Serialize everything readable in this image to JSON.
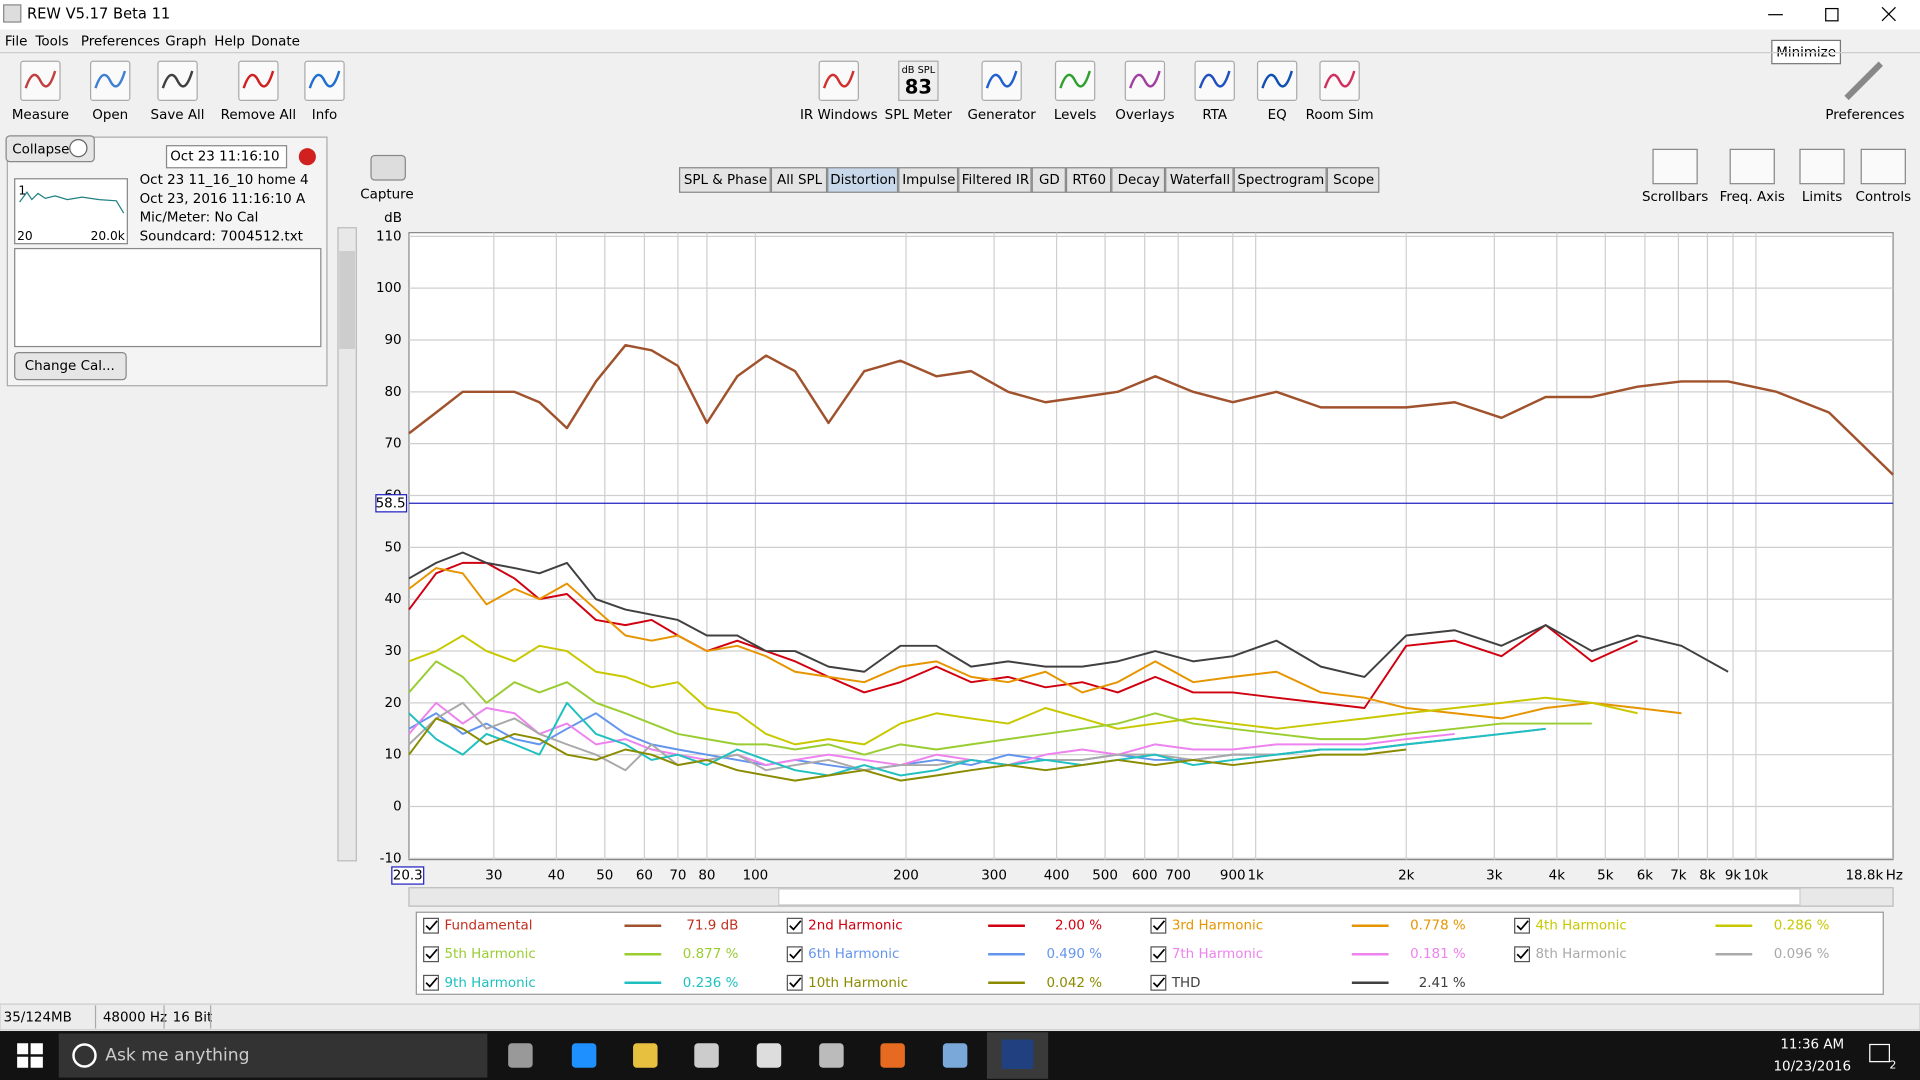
{
  "window": {
    "title": "REW V5.17 Beta 11",
    "tooltip": "Minimize"
  },
  "menu": [
    "File",
    "Tools",
    "Preferences",
    "Graph",
    "Help",
    "Donate"
  ],
  "toolbar_left": [
    "Measure",
    "Open",
    "Save All",
    "Remove All",
    "Info"
  ],
  "toolbar_center": [
    "IR Windows",
    "SPL Meter",
    "Generator",
    "Levels",
    "Overlays",
    "RTA",
    "EQ",
    "Room Sim"
  ],
  "spl_meter": {
    "unit": "dB SPL",
    "value": "83"
  },
  "toolbar_right": [
    "Preferences"
  ],
  "panel": {
    "collapse": "Collapse",
    "date_field": "Oct 23 11:16:10",
    "thumb_index": "1",
    "thumb_left": "20",
    "thumb_right": "20.0k",
    "lines": [
      "Oct 23 11_16_10 home 4",
      "Oct 23, 2016 11:16:10 A",
      "Mic/Meter: No Cal",
      "Soundcard: 7004512.txt"
    ],
    "change_cal": "Change Cal..."
  },
  "capture": "Capture",
  "tabs": [
    "SPL & Phase",
    "All SPL",
    "Distortion",
    "Impulse",
    "Filtered IR",
    "GD",
    "RT60",
    "Decay",
    "Waterfall",
    "Spectrogram",
    "Scope"
  ],
  "active_tab": 2,
  "graph_tools": [
    "Scrollbars",
    "Freq. Axis",
    "Limits",
    "Controls"
  ],
  "chart_data": {
    "type": "line",
    "y_label": "dB",
    "x_unit": "Hz",
    "x_scale": "log",
    "grid": true,
    "xlim": [
      20.3,
      18800
    ],
    "x_end_label": "18.8k",
    "ylim": [
      -10,
      110
    ],
    "yticks": [
      110,
      100,
      90,
      80,
      70,
      60,
      50,
      40,
      30,
      20,
      10,
      0,
      -10
    ],
    "xticks": [
      30,
      40,
      50,
      60,
      70,
      80,
      100,
      200,
      300,
      400,
      500,
      600,
      700,
      900,
      {
        "value": 1000,
        "label": "1k"
      },
      {
        "value": 2000,
        "label": "2k"
      },
      {
        "value": 3000,
        "label": "3k"
      },
      {
        "value": 4000,
        "label": "4k"
      },
      {
        "value": 5000,
        "label": "5k"
      },
      {
        "value": 6000,
        "label": "6k"
      },
      {
        "value": 7000,
        "label": "7k"
      },
      {
        "value": 8000,
        "label": "8k"
      },
      {
        "value": 9000,
        "label": "9k"
      },
      {
        "value": 10000,
        "label": "10k"
      }
    ],
    "cursor_y": 58.5,
    "x": [
      20.3,
      23,
      26,
      29,
      33,
      37,
      42,
      48,
      55,
      62,
      70,
      80,
      92,
      105,
      120,
      140,
      165,
      195,
      230,
      270,
      320,
      380,
      450,
      530,
      630,
      750,
      900,
      1100,
      1350,
      1650,
      2000,
      2500,
      3100,
      3800,
      4700,
      5800,
      7100,
      8800,
      11000,
      14000,
      18800
    ],
    "series": [
      {
        "name": "Fundamental",
        "color": "#a0522d",
        "legend_value": "71.9 dB",
        "values": [
          72,
          76,
          80,
          80,
          80,
          78,
          73,
          82,
          89,
          88,
          85,
          74,
          83,
          87,
          84,
          74,
          84,
          86,
          83,
          84,
          80,
          78,
          79,
          80,
          83,
          80,
          78,
          80,
          77,
          77,
          77,
          78,
          75,
          79,
          79,
          81,
          82,
          82,
          80,
          76,
          64
        ]
      },
      {
        "name": "2nd Harmonic",
        "color": "#d00010",
        "legend_value": "2.00 %",
        "values": [
          38,
          45,
          47,
          47,
          44,
          40,
          41,
          36,
          35,
          36,
          33,
          30,
          32,
          30,
          28,
          25,
          22,
          24,
          27,
          24,
          25,
          23,
          24,
          22,
          25,
          22,
          22,
          21,
          20,
          19,
          31,
          32,
          29,
          35,
          28,
          32,
          null,
          null,
          null,
          null,
          null
        ]
      },
      {
        "name": "3rd Harmonic",
        "color": "#e69500",
        "legend_value": "0.778 %",
        "values": [
          42,
          46,
          45,
          39,
          42,
          40,
          43,
          38,
          33,
          32,
          33,
          30,
          31,
          29,
          26,
          25,
          24,
          27,
          28,
          25,
          24,
          26,
          22,
          24,
          28,
          24,
          25,
          26,
          22,
          21,
          19,
          18,
          17,
          19,
          20,
          19,
          18,
          null,
          null,
          null,
          null
        ]
      },
      {
        "name": "4th Harmonic",
        "color": "#c8c800",
        "legend_value": "0.286 %",
        "values": [
          28,
          30,
          33,
          30,
          28,
          31,
          30,
          26,
          25,
          23,
          24,
          19,
          18,
          14,
          12,
          13,
          12,
          16,
          18,
          17,
          16,
          19,
          17,
          15,
          16,
          17,
          16,
          15,
          16,
          17,
          18,
          19,
          20,
          21,
          20,
          18,
          null,
          null,
          null,
          null,
          null
        ]
      },
      {
        "name": "5th Harmonic",
        "color": "#9acd32",
        "legend_value": "0.877 %",
        "values": [
          22,
          28,
          25,
          20,
          24,
          22,
          24,
          20,
          18,
          16,
          14,
          13,
          12,
          12,
          11,
          12,
          10,
          12,
          11,
          12,
          13,
          14,
          15,
          16,
          18,
          16,
          15,
          14,
          13,
          13,
          14,
          15,
          16,
          16,
          16,
          null,
          null,
          null,
          null,
          null,
          null
        ]
      },
      {
        "name": "6th Harmonic",
        "color": "#6495ed",
        "legend_value": "0.490 %",
        "values": [
          15,
          18,
          14,
          16,
          13,
          12,
          15,
          18,
          14,
          12,
          11,
          10,
          9,
          8,
          9,
          8,
          7,
          8,
          9,
          8,
          10,
          9,
          9,
          10,
          9,
          9,
          10,
          10,
          11,
          11,
          12,
          13,
          14,
          15,
          null,
          null,
          null,
          null,
          null,
          null,
          null
        ]
      },
      {
        "name": "7th Harmonic",
        "color": "#ee82ee",
        "legend_value": "0.181 %",
        "values": [
          14,
          20,
          16,
          19,
          18,
          14,
          16,
          12,
          13,
          11,
          10,
          9,
          10,
          8,
          9,
          10,
          9,
          8,
          10,
          9,
          8,
          10,
          11,
          10,
          12,
          11,
          11,
          12,
          12,
          12,
          13,
          14,
          null,
          null,
          null,
          null,
          null,
          null,
          null,
          null,
          null
        ]
      },
      {
        "name": "8th Harmonic",
        "color": "#a9a9a9",
        "legend_value": "0.096 %",
        "values": [
          12,
          17,
          20,
          15,
          17,
          14,
          12,
          10,
          7,
          12,
          8,
          9,
          10,
          7,
          8,
          9,
          7,
          8,
          8,
          9,
          8,
          9,
          9,
          10,
          10,
          9,
          10,
          10,
          11,
          11,
          12,
          null,
          null,
          null,
          null,
          null,
          null,
          null,
          null,
          null,
          null
        ]
      },
      {
        "name": "9th Harmonic",
        "color": "#20c0c0",
        "legend_value": "0.236 %",
        "values": [
          18,
          13,
          10,
          14,
          12,
          10,
          20,
          14,
          12,
          9,
          10,
          8,
          11,
          9,
          7,
          6,
          8,
          6,
          7,
          9,
          8,
          9,
          8,
          9,
          10,
          8,
          9,
          10,
          11,
          11,
          12,
          13,
          14,
          15,
          null,
          null,
          null,
          null,
          null,
          null,
          null
        ]
      },
      {
        "name": "10th Harmonic",
        "color": "#8b8b00",
        "legend_value": "0.042 %",
        "values": [
          10,
          17,
          15,
          12,
          14,
          13,
          10,
          9,
          11,
          10,
          8,
          9,
          7,
          6,
          5,
          6,
          7,
          5,
          6,
          7,
          8,
          7,
          8,
          9,
          8,
          9,
          8,
          9,
          10,
          10,
          11,
          null,
          null,
          null,
          null,
          null,
          null,
          null,
          null,
          null,
          null
        ]
      },
      {
        "name": "THD",
        "color": "#404040",
        "legend_value": "2.41 %",
        "values": [
          44,
          47,
          49,
          47,
          46,
          45,
          47,
          40,
          38,
          37,
          36,
          33,
          33,
          30,
          30,
          27,
          26,
          31,
          31,
          27,
          28,
          27,
          27,
          28,
          30,
          28,
          29,
          32,
          27,
          25,
          33,
          34,
          31,
          35,
          30,
          33,
          31,
          26,
          null,
          null,
          null
        ]
      }
    ]
  },
  "status": [
    "35/124MB",
    "48000 Hz",
    "16 Bit"
  ],
  "taskbar": {
    "search": "Ask me anything",
    "time": "11:36 AM",
    "date": "10/23/2016",
    "notifications": "2"
  }
}
